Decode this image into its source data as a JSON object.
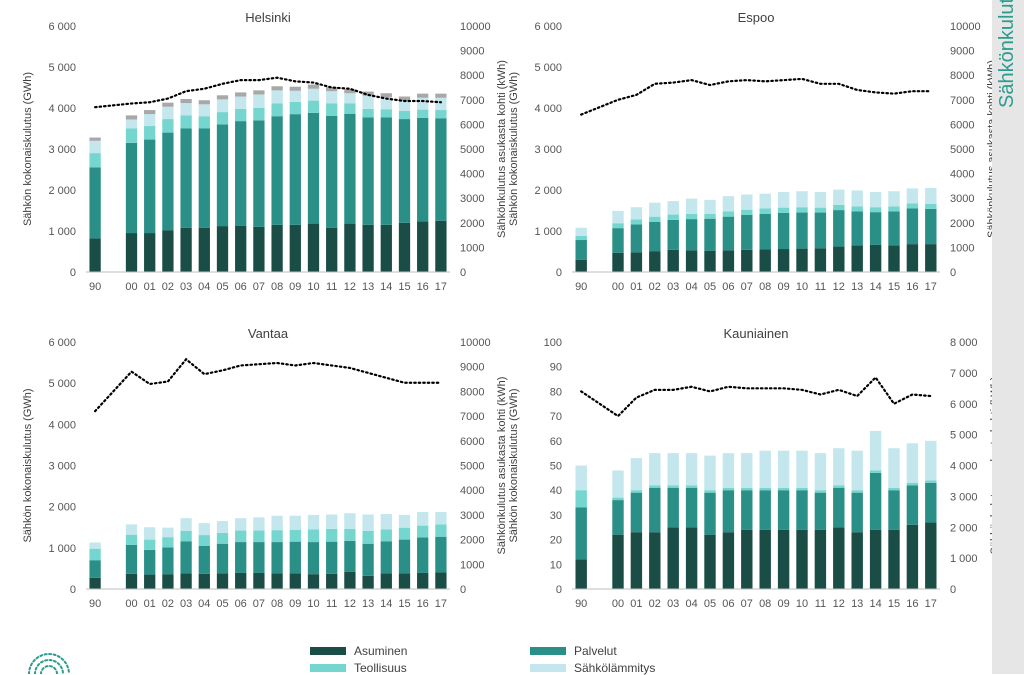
{
  "side_title": "Sähkönkulutus",
  "colors": {
    "Asuminen": "#1b4d47",
    "Palvelut": "#2a8f87",
    "Teollisuus": "#74d6cf",
    "Sähkölämmitys": "#c3e7ec",
    "Muu": "#a8a8a8",
    "line": "#000000",
    "axis_text": "#555555",
    "accent": "#2a9d8f"
  },
  "legend": [
    {
      "name": "Asuminen",
      "color": "#1b4d47"
    },
    {
      "name": "Palvelut",
      "color": "#2a8f87"
    },
    {
      "name": "Teollisuus",
      "color": "#74d6cf"
    },
    {
      "name": "Sähkölämmitys",
      "color": "#c3e7ec"
    }
  ],
  "chart_data": [
    {
      "type": "bar",
      "title": "Helsinki",
      "ylabel": "Sähkön kokonaiskulutus (GWh)",
      "y2label": "Sähkönkulutus asukasta kohti (kWh)",
      "ylim": [
        0,
        6000
      ],
      "yticks": [
        0,
        1000,
        2000,
        3000,
        4000,
        5000,
        6000
      ],
      "y2lim": [
        0,
        10000
      ],
      "y2ticks": [
        0,
        1000,
        2000,
        3000,
        4000,
        5000,
        6000,
        7000,
        8000,
        9000,
        10000
      ],
      "categories": [
        "90",
        "00",
        "01",
        "02",
        "03",
        "04",
        "05",
        "06",
        "07",
        "08",
        "09",
        "10",
        "11",
        "12",
        "13",
        "14",
        "15",
        "16",
        "17"
      ],
      "series": [
        {
          "name": "Asuminen",
          "values": [
            820,
            950,
            950,
            1020,
            1080,
            1080,
            1120,
            1130,
            1100,
            1150,
            1150,
            1180,
            1080,
            1180,
            1150,
            1150,
            1200,
            1230,
            1250
          ]
        },
        {
          "name": "Palvelut",
          "values": [
            1730,
            2200,
            2280,
            2380,
            2420,
            2420,
            2480,
            2550,
            2600,
            2650,
            2700,
            2700,
            2730,
            2680,
            2620,
            2620,
            2530,
            2530,
            2500
          ]
        },
        {
          "name": "Teollisuus",
          "values": [
            350,
            350,
            330,
            330,
            320,
            300,
            300,
            300,
            300,
            310,
            300,
            300,
            300,
            250,
            210,
            200,
            200,
            200,
            200
          ]
        },
        {
          "name": "Sähkölämmitys",
          "values": [
            300,
            220,
            290,
            300,
            300,
            290,
            310,
            300,
            330,
            320,
            270,
            290,
            300,
            250,
            320,
            290,
            250,
            290,
            300
          ]
        },
        {
          "name": "Muu",
          "values": [
            80,
            100,
            100,
            100,
            100,
            100,
            100,
            100,
            100,
            100,
            100,
            100,
            100,
            100,
            100,
            100,
            100,
            100,
            100
          ]
        }
      ],
      "line": {
        "values": [
          6700,
          6850,
          6900,
          7050,
          7350,
          7450,
          7650,
          7800,
          7800,
          7900,
          7750,
          7700,
          7500,
          7450,
          7200,
          7050,
          6950,
          6950,
          6900
        ]
      }
    },
    {
      "type": "bar",
      "title": "Espoo",
      "ylabel": "Sähkön kokonaiskulutus (GWh)",
      "y2label": "Sähkönkulutus asukasta kohti (kWh)",
      "ylim": [
        0,
        6000
      ],
      "yticks": [
        0,
        1000,
        2000,
        3000,
        4000,
        5000,
        6000
      ],
      "y2lim": [
        0,
        10000
      ],
      "y2ticks": [
        0,
        1000,
        2000,
        3000,
        4000,
        5000,
        6000,
        7000,
        8000,
        9000,
        10000
      ],
      "categories": [
        "90",
        "00",
        "01",
        "02",
        "03",
        "04",
        "05",
        "06",
        "07",
        "08",
        "09",
        "10",
        "11",
        "12",
        "13",
        "14",
        "15",
        "16",
        "17"
      ],
      "series": [
        {
          "name": "Asuminen",
          "values": [
            300,
            470,
            480,
            500,
            540,
            530,
            520,
            530,
            540,
            550,
            560,
            570,
            580,
            620,
            650,
            660,
            650,
            680,
            680
          ]
        },
        {
          "name": "Palvelut",
          "values": [
            480,
            600,
            680,
            720,
            730,
            760,
            780,
            820,
            850,
            870,
            880,
            880,
            870,
            890,
            830,
            800,
            830,
            870,
            860
          ]
        },
        {
          "name": "Teollisuus",
          "values": [
            100,
            120,
            120,
            130,
            130,
            130,
            120,
            130,
            130,
            130,
            130,
            130,
            120,
            130,
            120,
            120,
            120,
            120,
            120
          ]
        },
        {
          "name": "Sähkölämmitys",
          "values": [
            200,
            300,
            300,
            340,
            330,
            370,
            340,
            370,
            370,
            360,
            380,
            390,
            380,
            370,
            390,
            370,
            370,
            370,
            390
          ]
        }
      ],
      "line": {
        "values": [
          6400,
          7000,
          7200,
          7650,
          7700,
          7800,
          7600,
          7750,
          7800,
          7750,
          7800,
          7850,
          7650,
          7650,
          7400,
          7300,
          7250,
          7350,
          7350
        ]
      }
    },
    {
      "type": "bar",
      "title": "Vantaa",
      "ylabel": "Sähkön kokonaiskulutus (GWh)",
      "y2label": "Sähkönkulutus asukasta kohti (kWh)",
      "ylim": [
        0,
        6000
      ],
      "yticks": [
        0,
        1000,
        2000,
        3000,
        4000,
        5000,
        6000
      ],
      "y2lim": [
        0,
        10000
      ],
      "y2ticks": [
        0,
        1000,
        2000,
        3000,
        4000,
        5000,
        6000,
        7000,
        8000,
        9000,
        10000
      ],
      "categories": [
        "90",
        "00",
        "01",
        "02",
        "03",
        "04",
        "05",
        "06",
        "07",
        "08",
        "09",
        "10",
        "11",
        "12",
        "13",
        "14",
        "15",
        "16",
        "17"
      ],
      "series": [
        {
          "name": "Asuminen",
          "values": [
            270,
            370,
            350,
            360,
            380,
            370,
            380,
            390,
            390,
            380,
            380,
            360,
            370,
            420,
            320,
            380,
            380,
            390,
            400
          ]
        },
        {
          "name": "Palvelut",
          "values": [
            430,
            700,
            600,
            650,
            780,
            680,
            720,
            750,
            750,
            760,
            770,
            780,
            780,
            750,
            780,
            780,
            820,
            860,
            870
          ]
        },
        {
          "name": "Teollisuus",
          "values": [
            280,
            250,
            250,
            250,
            250,
            260,
            260,
            280,
            280,
            290,
            290,
            310,
            310,
            290,
            310,
            290,
            290,
            290,
            300
          ]
        },
        {
          "name": "Sähkölämmitys",
          "values": [
            150,
            250,
            300,
            230,
            310,
            290,
            290,
            300,
            320,
            350,
            340,
            350,
            350,
            380,
            400,
            370,
            310,
            330,
            300
          ]
        }
      ],
      "line": {
        "values": [
          7200,
          8800,
          8300,
          8400,
          9300,
          8700,
          8850,
          9050,
          9100,
          9150,
          9050,
          9150,
          9050,
          8950,
          8750,
          8550,
          8350,
          8350,
          8350
        ]
      }
    },
    {
      "type": "bar",
      "title": "Kauniainen",
      "ylabel": "Sähkön kokonaiskulutus (GWh)",
      "y2label": "Sähkönkulutus asukasta kohti (kWh)",
      "ylim": [
        0,
        100
      ],
      "yticks": [
        0,
        10,
        20,
        30,
        40,
        50,
        60,
        70,
        80,
        90,
        100
      ],
      "y2lim": [
        0,
        8000
      ],
      "y2ticks": [
        0,
        1000,
        2000,
        3000,
        4000,
        5000,
        6000,
        7000,
        8000
      ],
      "categories": [
        "90",
        "00",
        "01",
        "02",
        "03",
        "04",
        "05",
        "06",
        "07",
        "08",
        "09",
        "10",
        "11",
        "12",
        "13",
        "14",
        "15",
        "16",
        "17"
      ],
      "series": [
        {
          "name": "Asuminen",
          "values": [
            12,
            22,
            23,
            23,
            25,
            25,
            22,
            23,
            24,
            24,
            24,
            24,
            24,
            25,
            23,
            24,
            24,
            26,
            27
          ]
        },
        {
          "name": "Palvelut",
          "values": [
            21,
            14,
            16,
            18,
            16,
            16,
            17,
            17,
            16,
            16,
            16,
            16,
            15,
            16,
            16,
            23,
            16,
            16,
            16
          ]
        },
        {
          "name": "Teollisuus",
          "values": [
            7,
            1,
            1,
            1,
            1,
            1,
            1,
            1,
            1,
            1,
            1,
            1,
            1,
            1,
            1,
            1,
            1,
            1,
            1
          ]
        },
        {
          "name": "Sähkölämmitys",
          "values": [
            10,
            11,
            13,
            13,
            13,
            13,
            14,
            14,
            14,
            15,
            15,
            15,
            15,
            15,
            16,
            16,
            16,
            16,
            16
          ]
        }
      ],
      "line": {
        "values": [
          6400,
          5600,
          6200,
          6450,
          6450,
          6550,
          6400,
          6550,
          6500,
          6500,
          6500,
          6450,
          6300,
          6450,
          6250,
          6850,
          6000,
          6300,
          6250
        ]
      }
    }
  ]
}
